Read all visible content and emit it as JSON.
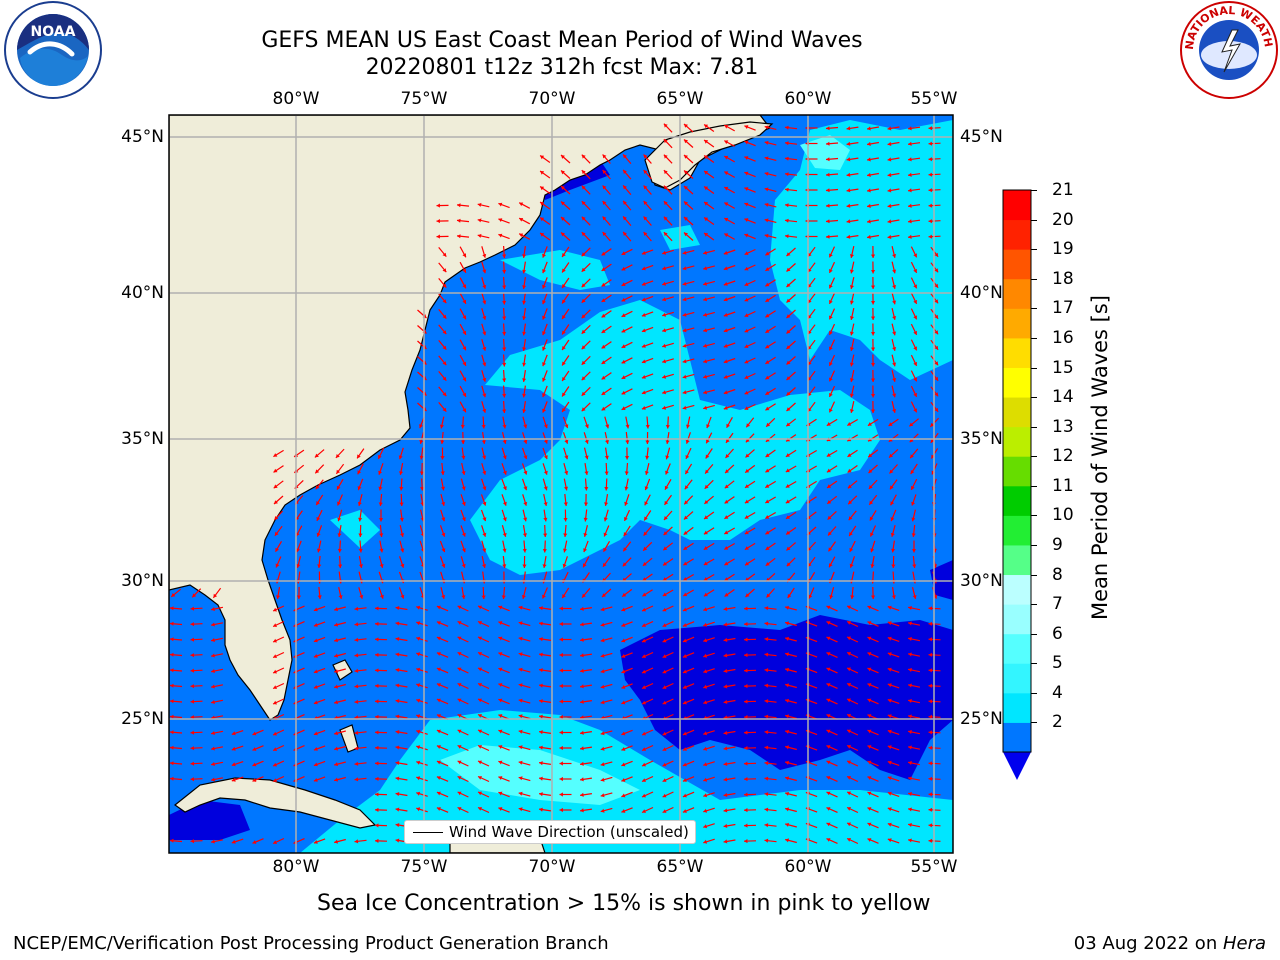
{
  "title": {
    "line1": "GEFS MEAN US East Coast Mean Period of Wind Waves",
    "line2": "20220801 t12z 312h fcst   Max: 7.81"
  },
  "map": {
    "lon_ticks": [
      "80°W",
      "75°W",
      "70°W",
      "65°W",
      "60°W",
      "55°W"
    ],
    "lat_ticks": [
      "45°N",
      "40°N",
      "35°N",
      "30°N",
      "25°N"
    ],
    "colors": {
      "land": "#efedd9",
      "coast": "#000000",
      "grid": "#b0b0b0",
      "arrow": "#ff0000",
      "period_2_4": "#0077ff",
      "period_4_6": "#00e6ff",
      "period_6_8": "#55ffff",
      "period_below_2": "#0000dd"
    },
    "legend_label": "Wind Wave Direction (unscaled)"
  },
  "colorbar": {
    "label": "Mean Period of Wind Waves [s]",
    "ticks": [
      "21",
      "20",
      "19",
      "18",
      "17",
      "16",
      "15",
      "14",
      "13",
      "12",
      "11",
      "10",
      "9",
      "8",
      "7",
      "6",
      "5",
      "4",
      "2"
    ],
    "levels": [
      2,
      4,
      5,
      6,
      7,
      8,
      9,
      10,
      11,
      12,
      13,
      14,
      15,
      16,
      17,
      18,
      19,
      20,
      21
    ],
    "colors": [
      "#0077ff",
      "#00e6ff",
      "#33f5ff",
      "#55ffff",
      "#99ffff",
      "#bbffff",
      "#55ff88",
      "#22ee33",
      "#00cc00",
      "#66dd00",
      "#bbee00",
      "#dddd00",
      "#ffff00",
      "#ffdd00",
      "#ffaa00",
      "#ff8800",
      "#ff5500",
      "#ff2200",
      "#ff0000"
    ],
    "under_color": "#0000ee"
  },
  "subtitle": "Sea Ice Concentration > 15% is shown in pink to yellow",
  "footer": {
    "left": "NCEP/EMC/Verification Post Processing Product Generation Branch",
    "right_date": "03 Aug 2022 on ",
    "right_host": "Hera"
  },
  "logos": {
    "noaa_text": "NOAA",
    "nws_text": "NATIONAL WEATHER SERVICE"
  }
}
